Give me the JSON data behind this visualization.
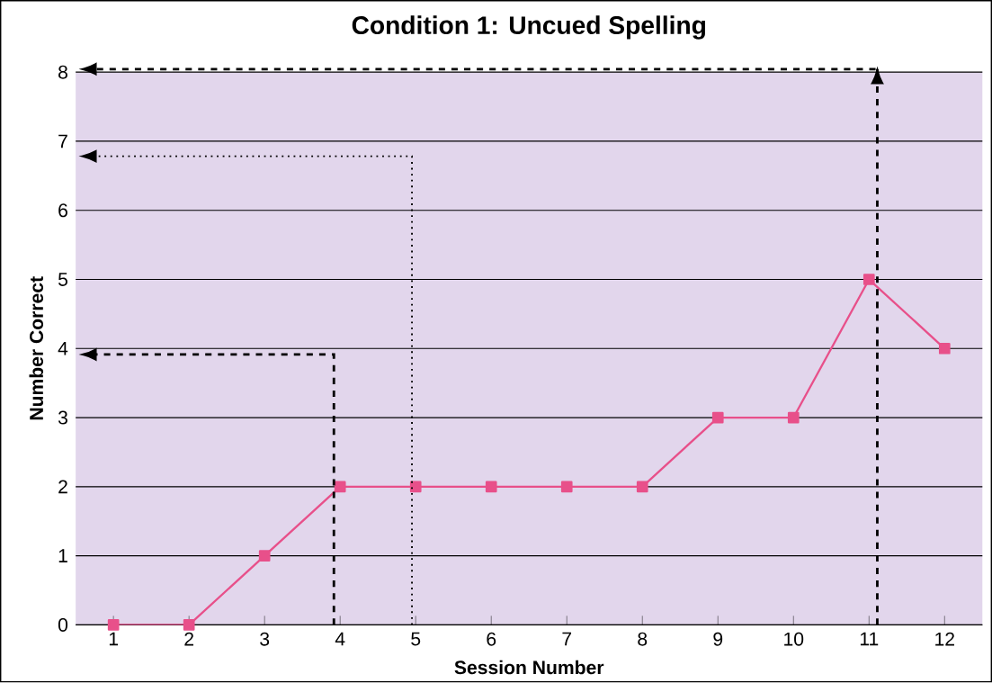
{
  "chart_data": {
    "type": "line",
    "title": "Condition 1: Uncued Spelling",
    "xlabel": "Session Number",
    "ylabel": "Number Correct",
    "categories": [
      "1",
      "2",
      "3",
      "4",
      "5",
      "6",
      "7",
      "8",
      "9",
      "10",
      "11",
      "12"
    ],
    "values": [
      0,
      0,
      1,
      2,
      2,
      2,
      2,
      2,
      3,
      3,
      5,
      4
    ],
    "color": "#e8508a",
    "ylim": [
      0,
      8
    ],
    "yticks": [
      0,
      1,
      2,
      3,
      4,
      5,
      6,
      7,
      8
    ],
    "grid": "y",
    "marker": "square",
    "line_style": "solid"
  }
}
